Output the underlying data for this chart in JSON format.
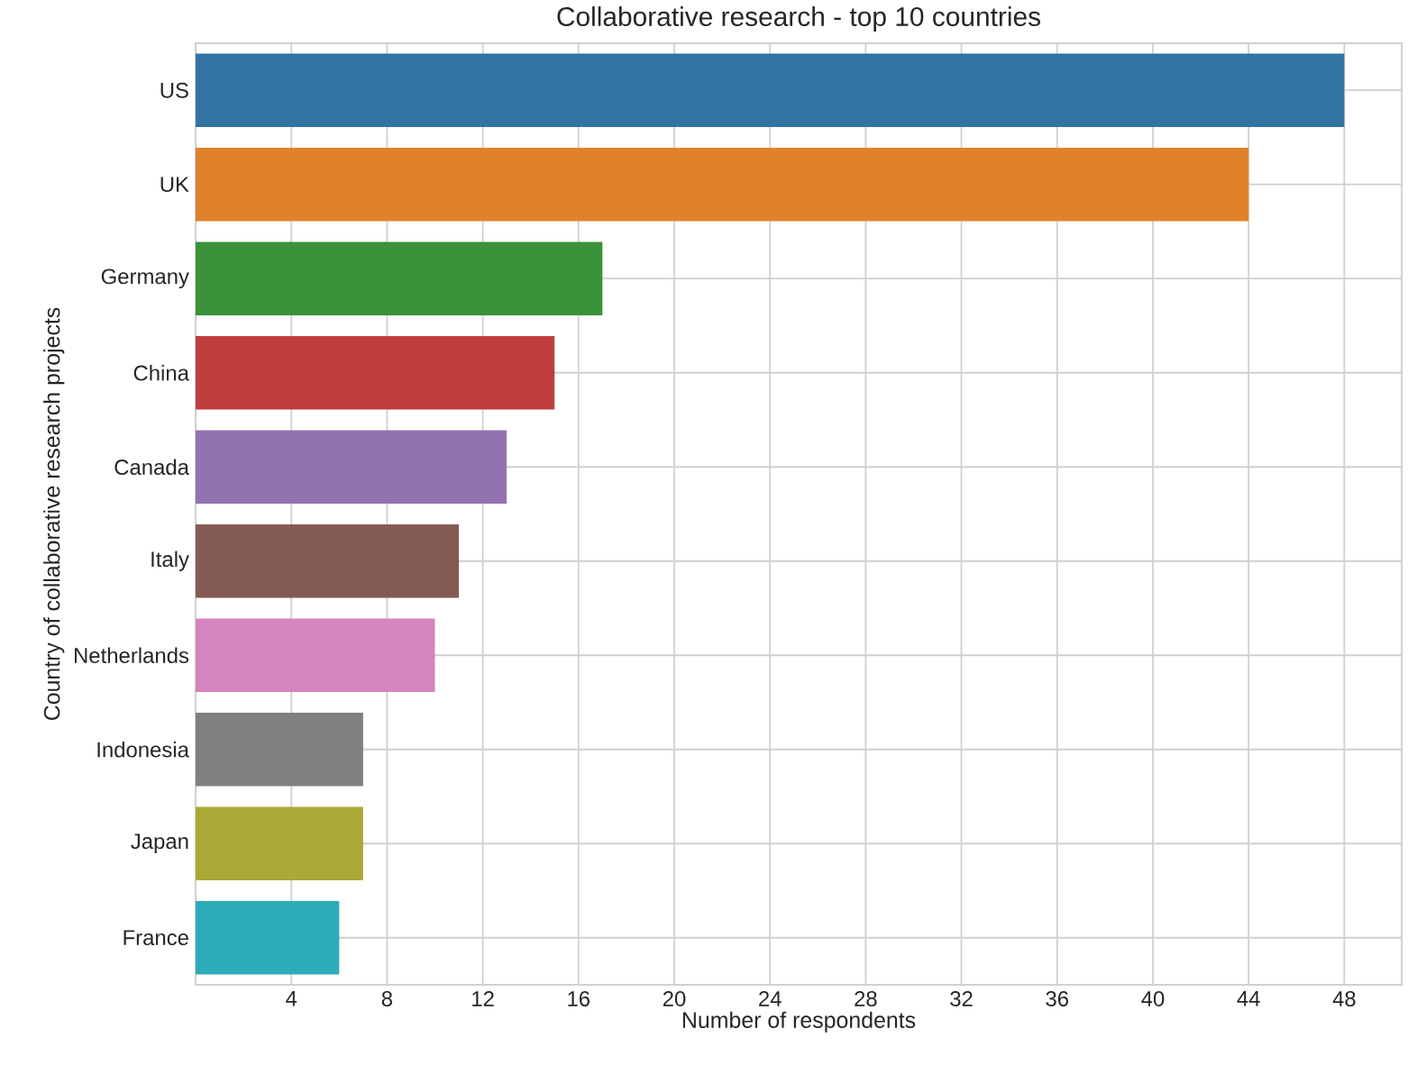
{
  "chart_data": {
    "type": "bar",
    "orientation": "horizontal",
    "title": "Collaborative research - top 10 countries",
    "xlabel": "Number of respondents",
    "ylabel": "Country of collaborative research projects",
    "categories": [
      "US",
      "UK",
      "Germany",
      "China",
      "Canada",
      "Italy",
      "Netherlands",
      "Indonesia",
      "Japan",
      "France"
    ],
    "values": [
      48,
      44,
      17,
      15,
      13,
      11,
      10,
      7,
      7,
      6
    ],
    "colors": [
      "#3274a1",
      "#e1812c",
      "#3a923a",
      "#c03d3e",
      "#9372b2",
      "#845b53",
      "#d684bd",
      "#7f7f7f",
      "#a9aa35",
      "#2eabb8"
    ],
    "xlim": [
      0,
      50.4
    ],
    "xticks": [
      4,
      8,
      12,
      16,
      20,
      24,
      28,
      32,
      36,
      40,
      44,
      48
    ],
    "grid": true
  }
}
